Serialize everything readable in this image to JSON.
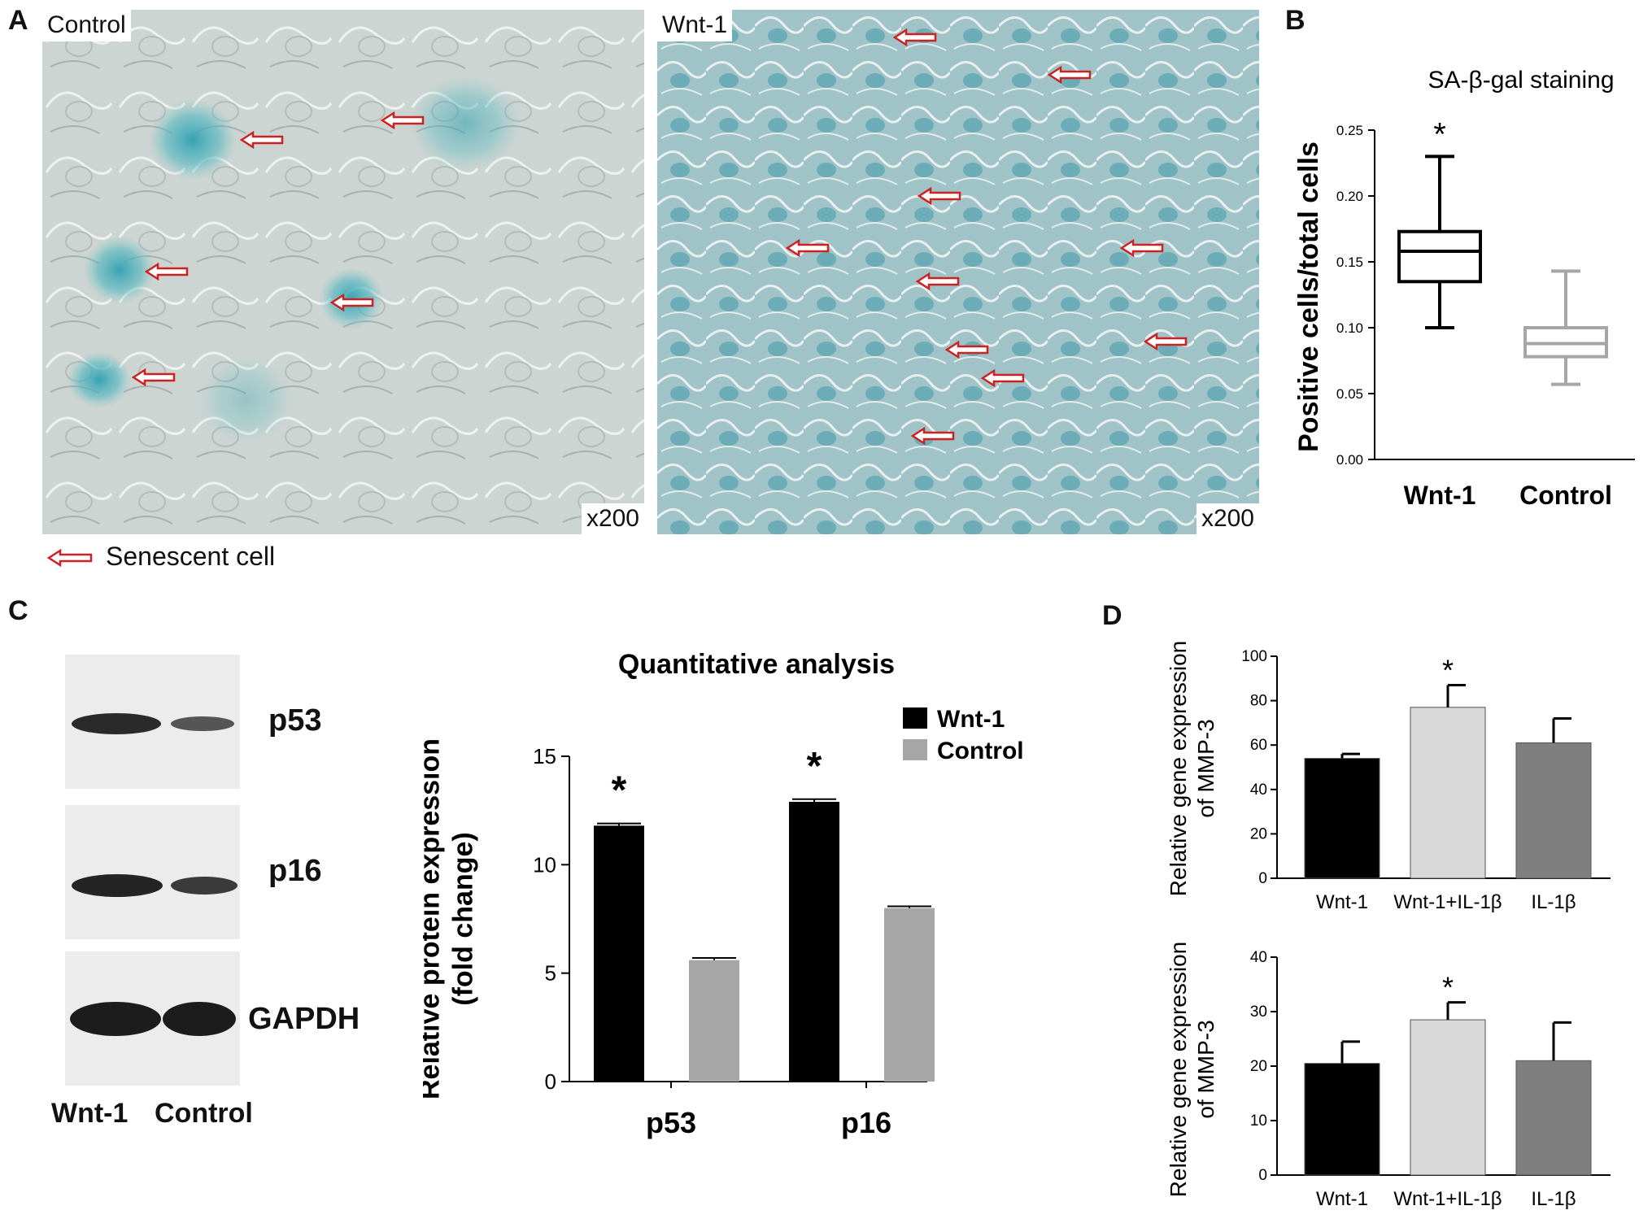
{
  "panel_letters": [
    "A",
    "B",
    "C",
    "D"
  ],
  "panel_a": {
    "images": [
      {
        "label": "Control",
        "magnification": "x200"
      },
      {
        "label": "Wnt-1",
        "magnification": "x200"
      }
    ],
    "legend": "Senescent cell"
  },
  "panel_c_blot": {
    "bands": [
      "p53",
      "p16",
      "GAPDH"
    ],
    "lanes": [
      "Wnt-1",
      "Control"
    ]
  },
  "chart_data": [
    {
      "id": "B",
      "type": "box",
      "title": "SA-β-gal staining",
      "ylabel": "Positive cells/total cells",
      "ylim": [
        0,
        0.25
      ],
      "yticks": [
        "0.00",
        "0.05",
        "0.10",
        "0.15",
        "0.20",
        "0.25"
      ],
      "categories": [
        "Wnt-1",
        "Control"
      ],
      "boxes": [
        {
          "category": "Wnt-1",
          "min": 0.1,
          "q1": 0.135,
          "median": 0.158,
          "q3": 0.173,
          "max": 0.23,
          "color": "#000000",
          "annotation": "*"
        },
        {
          "category": "Control",
          "min": 0.057,
          "q1": 0.078,
          "median": 0.088,
          "q3": 0.1,
          "max": 0.143,
          "color": "#a6a6a6"
        }
      ]
    },
    {
      "id": "C",
      "type": "bar",
      "title": "Quantitative analysis",
      "ylabel": "Relative protein expression\n(fold change)",
      "ylim": [
        0,
        15
      ],
      "yticks": [
        "0",
        "5",
        "10",
        "15"
      ],
      "categories": [
        "p53",
        "p16"
      ],
      "series": [
        {
          "name": "Wnt-1",
          "color": "#000000",
          "values": [
            11.8,
            12.9
          ],
          "errors": [
            0.1,
            0.12
          ]
        },
        {
          "name": "Control",
          "color": "#a6a6a6",
          "values": [
            5.6,
            8.0
          ],
          "errors": [
            0.1,
            0.08
          ]
        }
      ],
      "annotations": [
        {
          "category": "p53",
          "text": "*"
        },
        {
          "category": "p16",
          "text": "*"
        }
      ],
      "legend_position": "top-right"
    },
    {
      "id": "D-top",
      "type": "bar",
      "ylabel": "Relative gene expression\nof MMP-3",
      "ylim": [
        0,
        100
      ],
      "yticks": [
        "0",
        "20",
        "40",
        "60",
        "80",
        "100"
      ],
      "categories": [
        "Wnt-1",
        "Wnt-1+IL-1β",
        "IL-1β"
      ],
      "values": [
        54,
        77,
        61
      ],
      "errors": [
        2,
        10,
        11
      ],
      "colors": [
        "#000000",
        "#d9d9d9",
        "#7f7f7f"
      ],
      "annotations": [
        {
          "category": "Wnt-1+IL-1β",
          "text": "*"
        }
      ]
    },
    {
      "id": "D-bottom",
      "type": "bar",
      "ylabel": "Relative gene expression\nof MMP-3",
      "ylim": [
        0,
        40
      ],
      "yticks": [
        "0",
        "10",
        "20",
        "30",
        "40"
      ],
      "categories": [
        "Wnt-1",
        "Wnt-1+IL-1β",
        "IL-1β"
      ],
      "values": [
        20.5,
        28.5,
        21
      ],
      "errors": [
        4,
        3.2,
        7
      ],
      "colors": [
        "#000000",
        "#d9d9d9",
        "#7f7f7f"
      ],
      "annotations": [
        {
          "category": "Wnt-1+IL-1β",
          "text": "*"
        }
      ]
    }
  ]
}
